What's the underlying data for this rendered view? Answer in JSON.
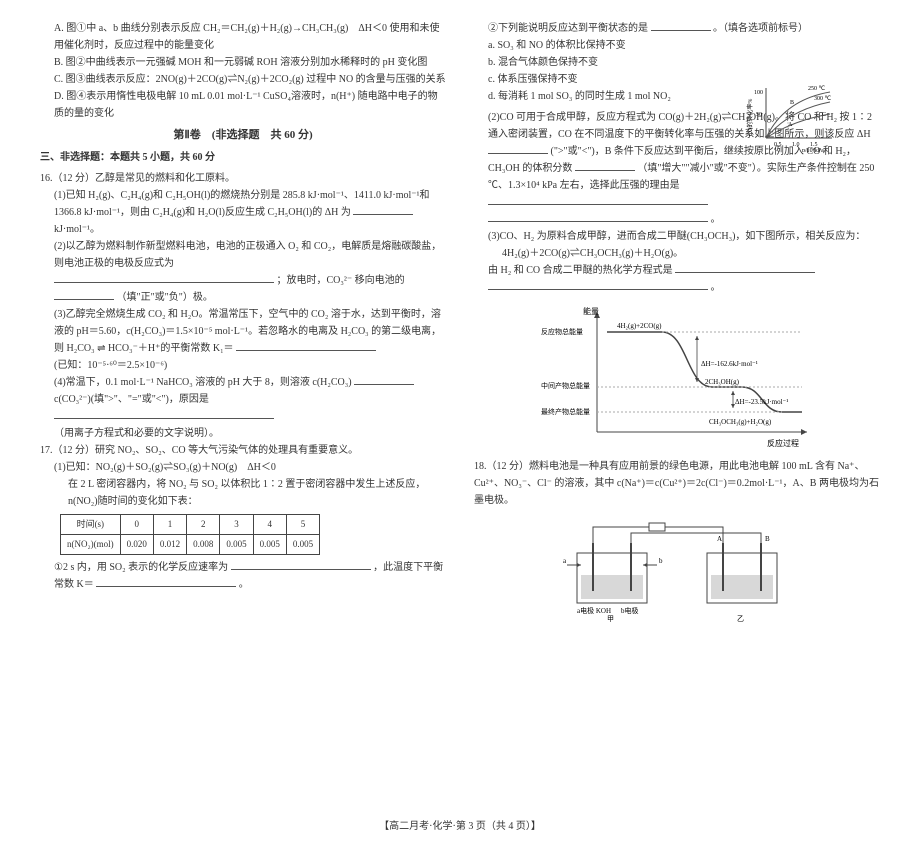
{
  "leftCol": {
    "optA": "A. 图①中 a、b 曲线分别表示反应 CH₂＝CH₂(g)＋H₂(g)→CH₃CH₃(g)　ΔH＜0 使用和未使用催化剂时，反应过程中的能量变化",
    "optB": "B. 图②中曲线表示一元强碱 MOH 和一元弱碱 ROH 溶液分别加水稀释时的 pH 变化图",
    "optC": "C. 图③曲线表示反应：2NO(g)＋2CO(g)⇌N₂(g)＋2CO₂(g) 过程中 NO 的含量与压强的关系",
    "optD": "D. 图④表示用惰性电极电解 10 mL 0.01 mol·L⁻¹ CuSO₄溶液时，n(H⁺) 随电路中电子的物质的量的变化",
    "partTitle": "第Ⅱ卷　(非选择题　共 60 分)",
    "sectionThree": "三、非选择题：本题共 5 小题，共 60 分",
    "q16": "16.（12 分）乙醇是常见的燃料和化工原料。",
    "q16_1a": "(1)已知 H₂(g)、C₂H₄(g)和 C₂H₅OH(l)的燃烧热分别是 285.8 kJ·mol⁻¹、1411.0 kJ·mol⁻¹和 1366.8 kJ·mol⁻¹，则由 C₂H₄(g)和 H₂O(l)反应生成 C₂H₅OH(l)的 ΔH 为",
    "q16_1c": "kJ·mol⁻¹。",
    "q16_2a": "(2)以乙醇为燃料制作新型燃料电池，电池的正极通入 O₂ 和 CO₂，电解质是熔融碳酸盐，则电池正极的电极反应式为",
    "q16_2b": "；放电时，CO₃²⁻ 移向电池的",
    "q16_2c": "（填\"正\"或\"负\"）极。",
    "q16_3a": "(3)乙醇完全燃烧生成 CO₂ 和 H₂O。常温常压下，空气中的 CO₂ 溶于水，达到平衡时，溶液的 pH＝5.60，c(H₂CO₃)＝1.5×10⁻⁵ mol·L⁻¹。若忽略水的电离及 H₂CO₃ 的第二级电离，则 H₂CO₃ ⇌ HCO₃⁻＋H⁺的平衡常数 K₁＝",
    "q16_3b": "(已知：10⁻⁵·⁶⁰＝2.5×10⁻⁶)",
    "q16_4a": "(4)常温下，0.1 mol·L⁻¹ NaHCO₃ 溶液的 pH 大于 8，则溶液 c(H₂CO₃)",
    "q16_4b": "c(CO₃²⁻)(填\">\"、\"=\"或\"<\")，原因是",
    "q16_4c": "（用离子方程式和必要的文字说明）。",
    "q17": "17.（12 分）研究 NO₂、SO₂、CO 等大气污染气体的处理具有重要意义。",
    "q17_1a": "(1)已知：NO₂(g)＋SO₂(g)⇌SO₃(g)＋NO(g)　ΔH＜0",
    "q17_1b": "在 2 L 密闭容器内，将 NO₂ 与 SO₂ 以体积比 1∶2 置于密闭容器中发生上述反应，n(NO₂)随时间的变化如下表：",
    "tableHeaders": [
      "时间(s)",
      "0",
      "1",
      "2",
      "3",
      "4",
      "5"
    ],
    "tableRowLabel": "n(NO₂)(mol)",
    "tableRow": [
      "0.020",
      "0.012",
      "0.008",
      "0.005",
      "0.005",
      "0.005"
    ],
    "q17_1c": "①2 s 内，用 SO₂ 表示的化学反应速率为",
    "q17_1d": "，此温度下平衡常数 K＝",
    "q17_1e": "。"
  },
  "rightCol": {
    "q17_2a": "②下列能说明反应达到平衡状态的是",
    "q17_2b": "。（填各选项前标号）",
    "q17_2_a": "a. SO₃ 和 NO 的体积比保持不变",
    "q17_2_b": "b. 混合气体颜色保持不变",
    "q17_2_c": "c. 体系压强保持不变",
    "q17_2_d": "d. 每消耗 1 mol SO₃ 的同时生成 1 mol NO₂",
    "q17_3a": "(2)CO 可用于合成甲醇，反应方程式为 CO(g)＋2H₂(g)⇌CH₃OH(g)。将 CO 和 H₂ 按 1∶2 通入密闭装置，CO 在不同温度下的平衡转化率与压强的关系如上图所示，则该反应 ΔH",
    "q17_3b": "(\">\"或\"<\")，B 条件下反应达到平衡后，继续按原比例加入 CO 和 H₂，CH₃OH 的体积分数",
    "q17_3c": "（填\"增大\"\"减小\"或\"不变\"）。实际生产条件控制在 250 ℃、1.3×10⁴ kPa 左右，选择此压强的理由是",
    "q17_3d": "。",
    "q17_4a": "(3)CO、H₂ 为原料合成甲醇，进而合成二甲醚(CH₃OCH₃)，如下图所示，相关反应为：",
    "q17_4b": "4H₂(g)＋2CO(g)⇌CH₃OCH₃(g)＋H₂O(g)。",
    "q17_4c": "由 H₂ 和 CO 合成二甲醚的热化学方程式是",
    "q17_4d": "。",
    "q18": "18.（12 分）燃料电池是一种具有应用前景的绿色电源，用此电池电解 100 mL 含有 Na⁺、Cu²⁺、NO₃⁻、Cl⁻ 的溶液，其中 c(Na⁺)＝c(Cu²⁺)＝2c(Cl⁻)＝0.2mol·L⁻¹，A、B 两电极均为石墨电极。"
  },
  "chart": {
    "xlabel": "p/10⁴kPa",
    "ylabel": "CO的转化率%",
    "lines": [
      "250 ℃",
      "300 ℃",
      "C"
    ],
    "marks": [
      "B",
      "A"
    ],
    "xticks": [
      "0.5",
      "1.0",
      "1.5"
    ],
    "yticks": [
      "100",
      "50"
    ],
    "colors": {
      "axis": "#444",
      "line": "#555"
    }
  },
  "energy": {
    "top_label": "4H₂(g)+2CO(g)",
    "dh1": "ΔH=-162.6kJ·mol⁻¹",
    "mid_label": "2CH₃OH(g)",
    "dh2": "ΔH=-23.5kJ·mol⁻¹",
    "bot_label": "CH₃OCH₃(g)+H₂O(g)",
    "ylabel": "能量",
    "xlabel": "反应过程",
    "leftLabels": [
      "反应物总能量",
      "中间产物总能量",
      "最终产物总能量"
    ]
  },
  "circuit": {
    "left_a": "a电极 KOH",
    "left_b": "b电极",
    "left_name": "甲",
    "right_name": "乙",
    "A": "A",
    "B": "B",
    "arrows": [
      "a",
      "b"
    ]
  },
  "footer": "【高二月考·化学·第 3 页（共 4 页）】"
}
